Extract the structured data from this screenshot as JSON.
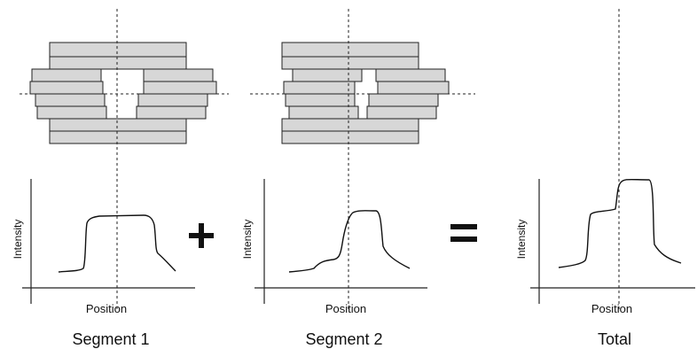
{
  "panels": [
    {
      "caption": "Segment 1",
      "xlabel": "Position",
      "ylabel": "Intensity"
    },
    {
      "caption": "Segment 2",
      "xlabel": "Position",
      "ylabel": "Intensity"
    },
    {
      "caption": "Total",
      "xlabel": "Position",
      "ylabel": "Intensity"
    }
  ],
  "operators": {
    "plus": "+",
    "equals": "="
  },
  "colors": {
    "block_fill": "#d7d7d7",
    "line": "#111111"
  }
}
